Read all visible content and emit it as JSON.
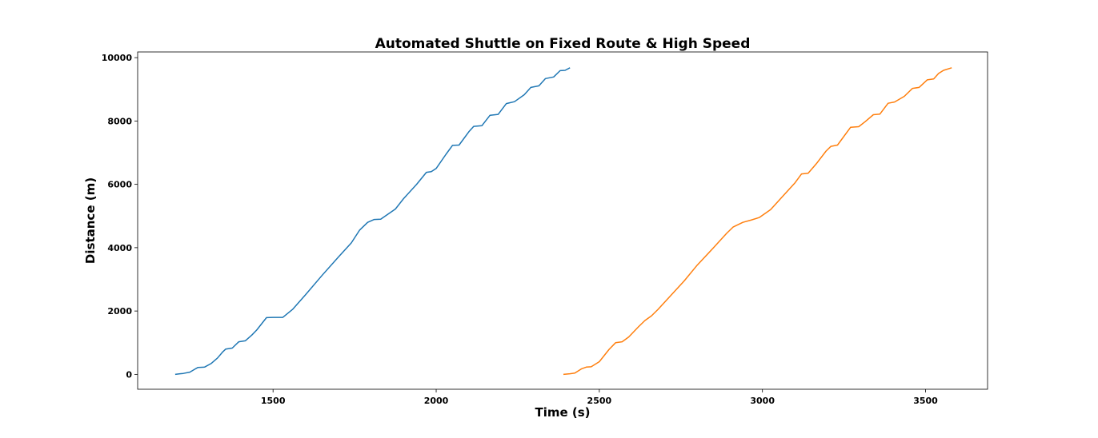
{
  "chart_data": {
    "type": "line",
    "title": "Automated Shuttle on Fixed Route & High Speed",
    "xlabel": "Time (s)",
    "ylabel": "Distance (m)",
    "xlim": [
      1085,
      3690
    ],
    "ylim": [
      -470,
      10180
    ],
    "xticks": [
      1500,
      2000,
      2500,
      3000,
      3500
    ],
    "yticks": [
      0,
      2000,
      4000,
      6000,
      8000,
      10000
    ],
    "grid": false,
    "legend": "none",
    "series": [
      {
        "color": "#1f77b4",
        "points": [
          [
            1200,
            0
          ],
          [
            1215,
            20
          ],
          [
            1225,
            30
          ],
          [
            1245,
            70
          ],
          [
            1260,
            160
          ],
          [
            1270,
            220
          ],
          [
            1290,
            230
          ],
          [
            1310,
            340
          ],
          [
            1330,
            520
          ],
          [
            1345,
            700
          ],
          [
            1355,
            800
          ],
          [
            1375,
            830
          ],
          [
            1395,
            1030
          ],
          [
            1415,
            1060
          ],
          [
            1435,
            1240
          ],
          [
            1450,
            1400
          ],
          [
            1480,
            1790
          ],
          [
            1500,
            1800
          ],
          [
            1530,
            1800
          ],
          [
            1560,
            2050
          ],
          [
            1600,
            2520
          ],
          [
            1650,
            3120
          ],
          [
            1700,
            3700
          ],
          [
            1740,
            4150
          ],
          [
            1765,
            4550
          ],
          [
            1790,
            4800
          ],
          [
            1810,
            4890
          ],
          [
            1830,
            4900
          ],
          [
            1875,
            5220
          ],
          [
            1900,
            5550
          ],
          [
            1940,
            6000
          ],
          [
            1970,
            6380
          ],
          [
            1985,
            6400
          ],
          [
            2000,
            6500
          ],
          [
            2030,
            6950
          ],
          [
            2050,
            7230
          ],
          [
            2070,
            7240
          ],
          [
            2100,
            7660
          ],
          [
            2115,
            7830
          ],
          [
            2140,
            7850
          ],
          [
            2165,
            8180
          ],
          [
            2190,
            8210
          ],
          [
            2215,
            8550
          ],
          [
            2240,
            8610
          ],
          [
            2270,
            8830
          ],
          [
            2290,
            9060
          ],
          [
            2315,
            9110
          ],
          [
            2335,
            9340
          ],
          [
            2360,
            9390
          ],
          [
            2380,
            9590
          ],
          [
            2395,
            9600
          ],
          [
            2410,
            9680
          ]
        ]
      },
      {
        "color": "#ff7f0e",
        "points": [
          [
            2390,
            0
          ],
          [
            2410,
            20
          ],
          [
            2425,
            40
          ],
          [
            2445,
            170
          ],
          [
            2460,
            230
          ],
          [
            2475,
            240
          ],
          [
            2500,
            400
          ],
          [
            2530,
            790
          ],
          [
            2550,
            1000
          ],
          [
            2570,
            1030
          ],
          [
            2590,
            1180
          ],
          [
            2620,
            1500
          ],
          [
            2640,
            1700
          ],
          [
            2660,
            1850
          ],
          [
            2680,
            2050
          ],
          [
            2720,
            2500
          ],
          [
            2760,
            2950
          ],
          [
            2800,
            3450
          ],
          [
            2850,
            4000
          ],
          [
            2890,
            4450
          ],
          [
            2910,
            4650
          ],
          [
            2940,
            4800
          ],
          [
            2965,
            4870
          ],
          [
            2990,
            4950
          ],
          [
            3025,
            5200
          ],
          [
            3060,
            5600
          ],
          [
            3100,
            6050
          ],
          [
            3120,
            6330
          ],
          [
            3140,
            6350
          ],
          [
            3165,
            6650
          ],
          [
            3195,
            7050
          ],
          [
            3210,
            7200
          ],
          [
            3230,
            7240
          ],
          [
            3270,
            7800
          ],
          [
            3295,
            7820
          ],
          [
            3315,
            7980
          ],
          [
            3340,
            8200
          ],
          [
            3360,
            8220
          ],
          [
            3385,
            8560
          ],
          [
            3405,
            8600
          ],
          [
            3435,
            8780
          ],
          [
            3460,
            9030
          ],
          [
            3480,
            9060
          ],
          [
            3505,
            9300
          ],
          [
            3525,
            9330
          ],
          [
            3540,
            9500
          ],
          [
            3555,
            9600
          ],
          [
            3580,
            9680
          ]
        ]
      }
    ]
  }
}
